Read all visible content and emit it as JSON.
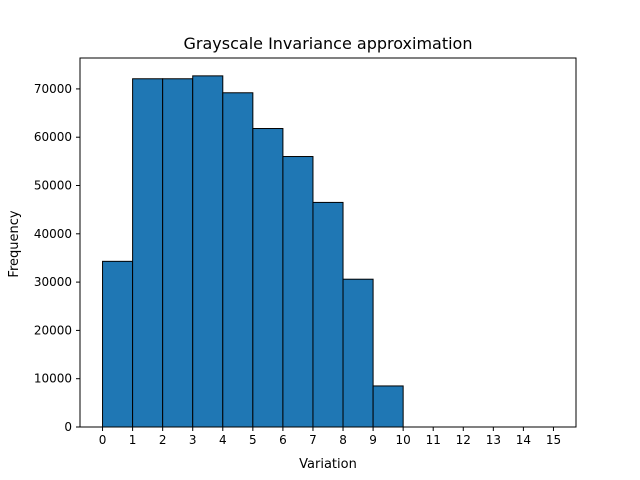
{
  "chart_data": {
    "type": "bar",
    "title": "Grayscale Invariance approximation",
    "xlabel": "Variation",
    "ylabel": "Frequency",
    "bins": [
      [
        0,
        1
      ],
      [
        1,
        2
      ],
      [
        2,
        3
      ],
      [
        3,
        4
      ],
      [
        4,
        5
      ],
      [
        5,
        6
      ],
      [
        6,
        7
      ],
      [
        7,
        8
      ],
      [
        8,
        9
      ],
      [
        9,
        10
      ],
      [
        10,
        11
      ],
      [
        11,
        12
      ],
      [
        12,
        13
      ],
      [
        13,
        14
      ],
      [
        14,
        15
      ]
    ],
    "values": [
      34300,
      72100,
      72100,
      72700,
      69200,
      61800,
      56000,
      46500,
      30600,
      8500,
      0,
      0,
      0,
      0,
      0
    ],
    "xlim": [
      -0.75,
      15.75
    ],
    "ylim": [
      0,
      76400
    ],
    "x_ticks": [
      0,
      1,
      2,
      3,
      4,
      5,
      6,
      7,
      8,
      9,
      10,
      11,
      12,
      13,
      14,
      15
    ],
    "y_ticks": [
      0,
      10000,
      20000,
      30000,
      40000,
      50000,
      60000,
      70000
    ],
    "bar_color": "#1f77b4",
    "edge_color": "#000000",
    "grid": false,
    "legend": "none"
  }
}
